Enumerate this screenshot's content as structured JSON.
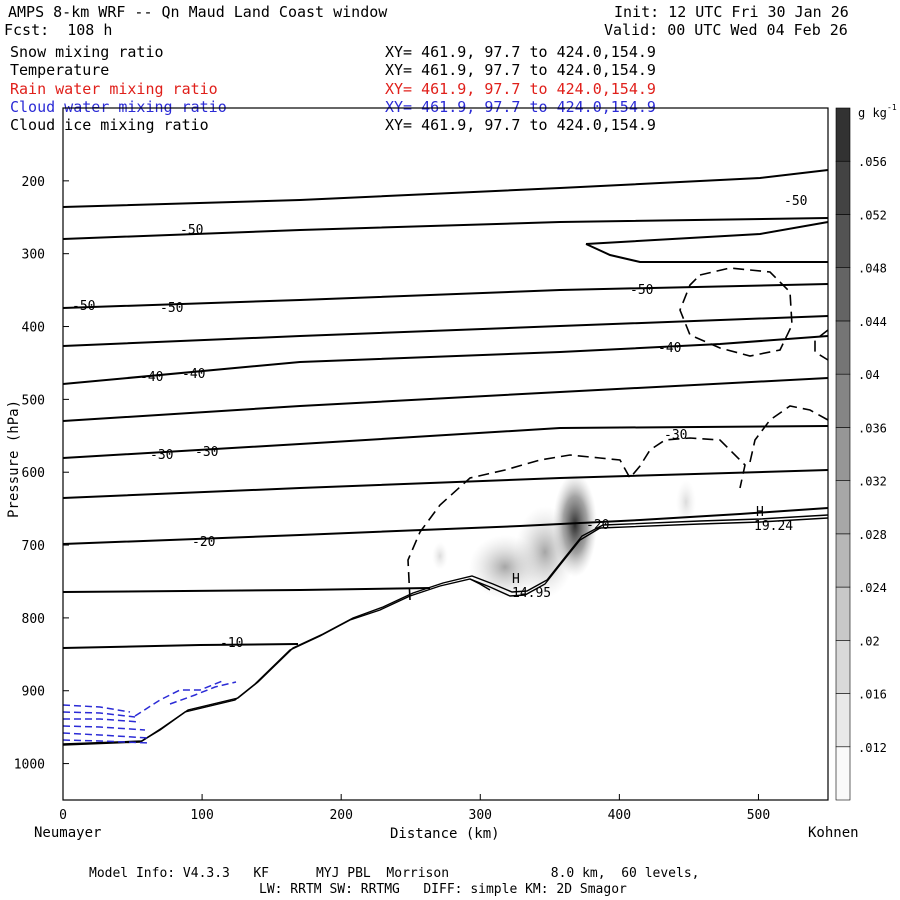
{
  "header": {
    "title": "AMPS 8-km WRF -- Qn Maud Land Coast window",
    "forecast": "Fcst:  108 h",
    "init": "Init: 12 UTC Fri 30 Jan 26",
    "valid": "Valid: 00 UTC Wed 04 Feb 26"
  },
  "legend": [
    {
      "label": "Snow mixing ratio",
      "xy": "XY= 461.9, 97.7 to 424.0,154.9",
      "color": "#000000"
    },
    {
      "label": "Temperature",
      "xy": "XY= 461.9, 97.7 to 424.0,154.9",
      "color": "#000000"
    },
    {
      "label": "Rain water mixing ratio",
      "xy": "XY= 461.9, 97.7 to 424.0,154.9",
      "color": "#e0201b"
    },
    {
      "label": "Cloud water mixing ratio",
      "xy": "XY= 461.9, 97.7 to 424.0,154.9",
      "color": "#2b2bd6"
    },
    {
      "label": "Cloud ice mixing ratio",
      "xy": "XY= 461.9, 97.7 to 424.0,154.9",
      "color": "#000000"
    }
  ],
  "chart_data": {
    "type": "cross-section",
    "xlabel": "Distance (km)",
    "ylabel": "Pressure (hPa)",
    "xlim": [
      0,
      550
    ],
    "ylim": [
      1050,
      100
    ],
    "xticks": [
      0,
      100,
      200,
      300,
      400,
      500
    ],
    "yticks": [
      200,
      300,
      400,
      500,
      600,
      700,
      800,
      900,
      1000
    ],
    "left_end_label": "Neumayer",
    "right_end_label": "Kohnen",
    "colorbar": {
      "unit": "g kg",
      "unit_exp": "-1",
      "ticks": [
        ".012",
        ".016",
        ".02",
        ".024",
        ".028",
        ".032",
        ".036",
        ".04",
        ".044",
        ".048",
        ".052",
        ".056"
      ]
    },
    "temperature_labels": [
      "-50",
      "-50",
      "-50",
      "-50",
      "-50",
      "-40",
      "-40",
      "-40",
      "-30",
      "-30",
      "-30",
      "-20",
      "-20",
      "-10"
    ],
    "highs": [
      {
        "mark": "H",
        "value": "14.95"
      },
      {
        "mark": "H",
        "value": "19.24"
      }
    ]
  },
  "footer": {
    "line1": "Model Info: V4.3.3   KF      MYJ PBL  Morrison             8.0 km,  60 levels,",
    "line2": "LW: RRTM SW: RRTMG   DIFF: simple KM: 2D Smagor"
  }
}
